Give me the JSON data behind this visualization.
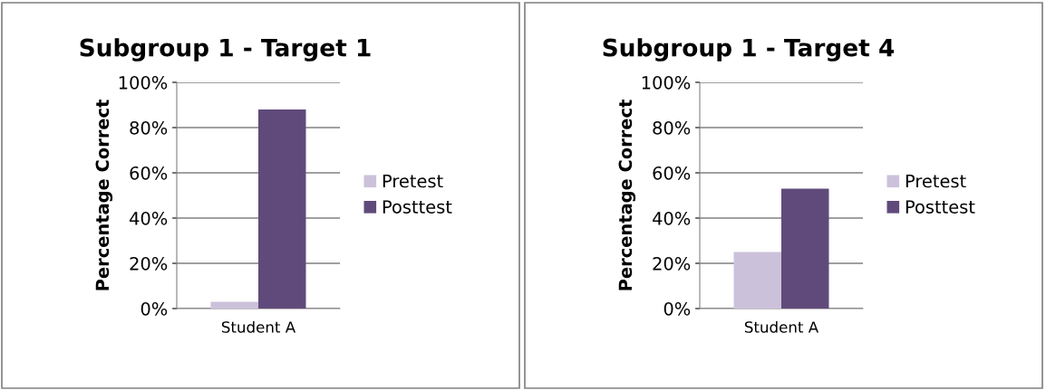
{
  "chart_data": [
    {
      "type": "bar",
      "title": "Subgroup 1 - Target 1",
      "ylabel": "Percentage Correct",
      "categories": [
        "Student A"
      ],
      "series": [
        {
          "name": "Pretest",
          "color": "#ccc1da",
          "values": [
            3
          ]
        },
        {
          "name": "Posttest",
          "color": "#604a7b",
          "values": [
            88
          ]
        }
      ],
      "ylim": [
        0,
        100
      ],
      "yticks": [
        {
          "value": 0,
          "label": "0%"
        },
        {
          "value": 20,
          "label": "20%"
        },
        {
          "value": 40,
          "label": "40%"
        },
        {
          "value": 60,
          "label": "60%"
        },
        {
          "value": 80,
          "label": "80%"
        },
        {
          "value": 100,
          "label": "100%"
        }
      ],
      "grid": "y",
      "legend": "right"
    },
    {
      "type": "bar",
      "title": "Subgroup 1 - Target 4",
      "ylabel": "Percentage Correct",
      "categories": [
        "Student A"
      ],
      "series": [
        {
          "name": "Pretest",
          "color": "#ccc1da",
          "values": [
            25
          ]
        },
        {
          "name": "Posttest",
          "color": "#604a7b",
          "values": [
            53
          ]
        }
      ],
      "ylim": [
        0,
        100
      ],
      "yticks": [
        {
          "value": 0,
          "label": "0%"
        },
        {
          "value": 20,
          "label": "20%"
        },
        {
          "value": 40,
          "label": "40%"
        },
        {
          "value": 60,
          "label": "60%"
        },
        {
          "value": 80,
          "label": "80%"
        },
        {
          "value": 100,
          "label": "100%"
        }
      ],
      "grid": "y",
      "legend": "right"
    }
  ]
}
